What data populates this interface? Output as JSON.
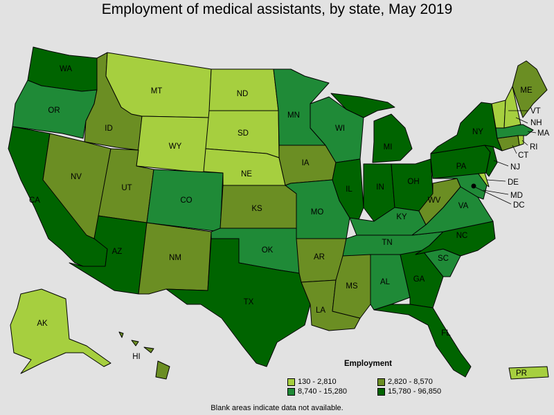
{
  "title": "Employment of medical assistants, by state, May 2019",
  "footnote": "Blank areas indicate data not available.",
  "legend": {
    "title": "Employment",
    "bins": [
      {
        "label": "130 - 2,810",
        "color": "#a6cf3f"
      },
      {
        "label": "2,820 - 8,570",
        "color": "#6b8e23"
      },
      {
        "label": "8,740 - 15,280",
        "color": "#1f8a37"
      },
      {
        "label": "15,780 - 96,850",
        "color": "#006400"
      }
    ]
  },
  "states": {
    "WA": {
      "label": "WA",
      "bin": 3
    },
    "OR": {
      "label": "OR",
      "bin": 2
    },
    "CA": {
      "label": "CA",
      "bin": 3
    },
    "ID": {
      "label": "ID",
      "bin": 1
    },
    "NV": {
      "label": "NV",
      "bin": 1
    },
    "MT": {
      "label": "MT",
      "bin": 0
    },
    "WY": {
      "label": "WY",
      "bin": 0
    },
    "UT": {
      "label": "UT",
      "bin": 1
    },
    "AZ": {
      "label": "AZ",
      "bin": 3
    },
    "CO": {
      "label": "CO",
      "bin": 2
    },
    "NM": {
      "label": "NM",
      "bin": 1
    },
    "ND": {
      "label": "ND",
      "bin": 0
    },
    "SD": {
      "label": "SD",
      "bin": 0
    },
    "NE": {
      "label": "NE",
      "bin": 0
    },
    "KS": {
      "label": "KS",
      "bin": 1
    },
    "OK": {
      "label": "OK",
      "bin": 2
    },
    "TX": {
      "label": "TX",
      "bin": 3
    },
    "MN": {
      "label": "MN",
      "bin": 2
    },
    "IA": {
      "label": "IA",
      "bin": 1
    },
    "MO": {
      "label": "MO",
      "bin": 2
    },
    "AR": {
      "label": "AR",
      "bin": 1
    },
    "LA": {
      "label": "LA",
      "bin": 1
    },
    "WI": {
      "label": "WI",
      "bin": 2
    },
    "IL": {
      "label": "IL",
      "bin": 3
    },
    "MI": {
      "label": "MI",
      "bin": 3
    },
    "IN": {
      "label": "IN",
      "bin": 3
    },
    "OH": {
      "label": "OH",
      "bin": 3
    },
    "KY": {
      "label": "KY",
      "bin": 2
    },
    "TN": {
      "label": "TN",
      "bin": 2
    },
    "MS": {
      "label": "MS",
      "bin": 1
    },
    "AL": {
      "label": "AL",
      "bin": 2
    },
    "GA": {
      "label": "GA",
      "bin": 3
    },
    "FL": {
      "label": "FL",
      "bin": 3
    },
    "SC": {
      "label": "SC",
      "bin": 2
    },
    "NC": {
      "label": "NC",
      "bin": 3
    },
    "VA": {
      "label": "VA",
      "bin": 2
    },
    "WV": {
      "label": "WV",
      "bin": 1
    },
    "PA": {
      "label": "PA",
      "bin": 3
    },
    "NY": {
      "label": "NY",
      "bin": 3
    },
    "ME": {
      "label": "ME",
      "bin": 1
    },
    "VT": {
      "label": "VT",
      "bin": 0
    },
    "NH": {
      "label": "NH",
      "bin": 0
    },
    "MA": {
      "label": "MA",
      "bin": 2
    },
    "RI": {
      "label": "RI",
      "bin": 0
    },
    "CT": {
      "label": "CT",
      "bin": 1
    },
    "NJ": {
      "label": "NJ",
      "bin": 3
    },
    "DE": {
      "label": "DE",
      "bin": 0
    },
    "MD": {
      "label": "MD",
      "bin": 2
    },
    "DC": {
      "label": "DC",
      "bin": 0
    },
    "AK": {
      "label": "AK",
      "bin": 0
    },
    "HI": {
      "label": "HI",
      "bin": 1
    },
    "PR": {
      "label": "PR",
      "bin": 0
    }
  }
}
